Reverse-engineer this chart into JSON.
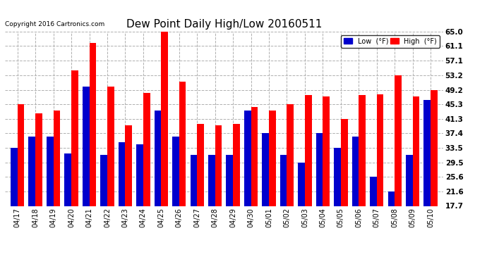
{
  "title": "Dew Point Daily High/Low 20160511",
  "copyright": "Copyright 2016 Cartronics.com",
  "dates": [
    "04/17",
    "04/18",
    "04/19",
    "04/20",
    "04/21",
    "04/22",
    "04/23",
    "04/24",
    "04/25",
    "04/26",
    "04/27",
    "04/28",
    "04/29",
    "04/30",
    "05/01",
    "05/02",
    "05/03",
    "05/04",
    "05/05",
    "05/06",
    "05/07",
    "05/08",
    "05/09",
    "05/10"
  ],
  "high": [
    45.3,
    42.8,
    43.5,
    54.5,
    62.0,
    50.0,
    39.5,
    48.3,
    65.0,
    51.5,
    40.0,
    39.5,
    40.0,
    44.5,
    43.5,
    45.3,
    47.8,
    47.5,
    41.3,
    47.8,
    48.0,
    53.2,
    47.5,
    49.2
  ],
  "low": [
    33.5,
    36.5,
    36.5,
    32.0,
    50.0,
    31.5,
    35.0,
    34.5,
    43.5,
    36.5,
    31.5,
    31.5,
    31.5,
    43.5,
    37.5,
    31.5,
    29.5,
    37.5,
    33.5,
    36.5,
    25.6,
    21.6,
    31.5,
    46.5
  ],
  "yticks": [
    17.7,
    21.6,
    25.6,
    29.5,
    33.5,
    37.4,
    41.3,
    45.3,
    49.2,
    53.2,
    57.1,
    61.1,
    65.0
  ],
  "ymin": 17.7,
  "ymax": 65.0,
  "high_color": "#ff0000",
  "low_color": "#0000cc",
  "bg_color": "#ffffff",
  "grid_color": "#b0b0b0",
  "bar_width": 0.38,
  "legend_low_label": "Low  (°F)",
  "legend_high_label": "High  (°F)"
}
